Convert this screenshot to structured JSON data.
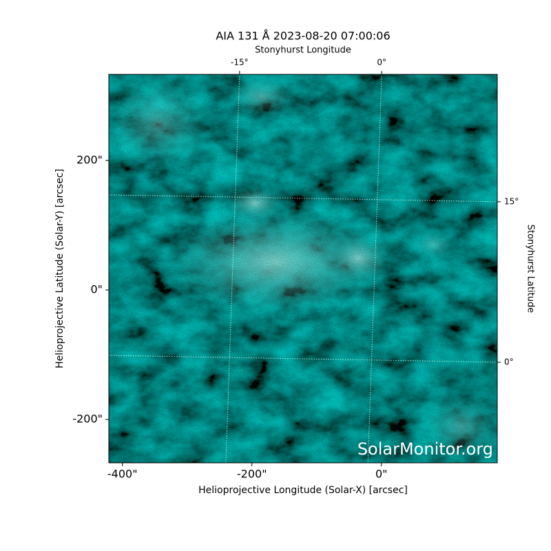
{
  "chart_data": {
    "type": "image",
    "title": "AIA 131 Å 2023-08-20 07:00:06",
    "x_label": "Helioprojective Longitude (Solar-X) [arcsec]",
    "y_label": "Helioprojective Latitude (Solar-Y) [arcsec]",
    "x2_label": "Stonyhurst Longitude",
    "y2_label": "Stonyhurst Latitude",
    "watermark": "SolarMonitor.org",
    "color": "#1fb5b0",
    "xlim": [
      -421,
      179
    ],
    "ylim": [
      -267,
      333
    ],
    "xticks": [
      {
        "value": -400,
        "label": "-400\""
      },
      {
        "value": -200,
        "label": "-200\""
      },
      {
        "value": 0,
        "label": "0\""
      }
    ],
    "yticks": [
      {
        "value": -200,
        "label": "-200\""
      },
      {
        "value": 0,
        "label": "0\""
      },
      {
        "value": 200,
        "label": "200\""
      }
    ],
    "x2lim": [
      -28.8,
      12.2
    ],
    "x2ticks": [
      {
        "value": -15,
        "label": "-15°"
      },
      {
        "value": 0,
        "label": "0°"
      }
    ],
    "y2lim": [
      -9.4,
      26.9
    ],
    "y2ticks": [
      {
        "value": 0,
        "label": "0°"
      },
      {
        "value": 15,
        "label": "15°"
      }
    ],
    "grid": true
  }
}
